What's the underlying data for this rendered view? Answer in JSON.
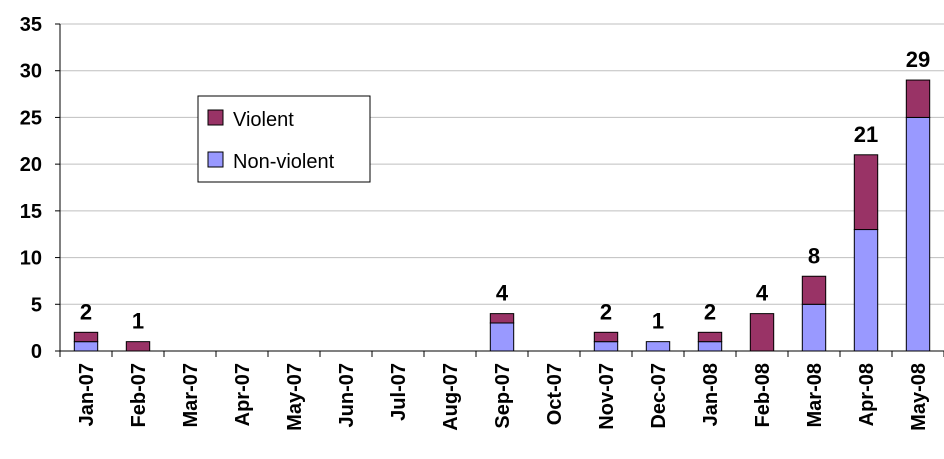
{
  "chart_data": {
    "type": "bar",
    "stacked": true,
    "categories": [
      "Jan-07",
      "Feb-07",
      "Mar-07",
      "Apr-07",
      "May-07",
      "Jun-07",
      "Jul-07",
      "Aug-07",
      "Sep-07",
      "Oct-07",
      "Nov-07",
      "Dec-07",
      "Jan-08",
      "Feb-08",
      "Mar-08",
      "Apr-08",
      "May-08"
    ],
    "series": [
      {
        "name": "Non-violent",
        "color": "#9999ff",
        "values": [
          1,
          0,
          0,
          0,
          0,
          0,
          0,
          0,
          3,
          0,
          1,
          1,
          1,
          0,
          5,
          13,
          25
        ]
      },
      {
        "name": "Violent",
        "color": "#993366",
        "values": [
          1,
          1,
          0,
          0,
          0,
          0,
          0,
          0,
          1,
          0,
          1,
          0,
          1,
          4,
          3,
          8,
          4
        ]
      }
    ],
    "totals": [
      2,
      1,
      null,
      null,
      null,
      null,
      null,
      null,
      4,
      null,
      2,
      1,
      2,
      4,
      8,
      21,
      29
    ],
    "ylim": [
      0,
      35
    ],
    "yticks": [
      0,
      5,
      10,
      15,
      20,
      25,
      30,
      35
    ],
    "grid": true,
    "legend": "upper-left-inside",
    "title": "",
    "xlabel": "",
    "ylabel": ""
  }
}
